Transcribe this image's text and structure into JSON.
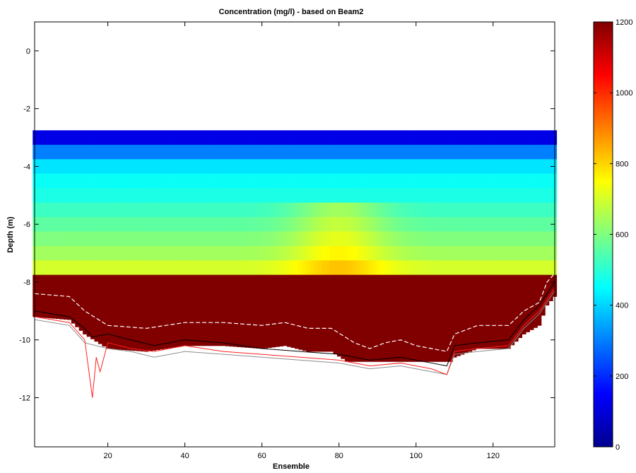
{
  "chart_data": {
    "type": "heatmap",
    "title": "Concentration (mg/l) - based on Beam2",
    "xlabel": "Ensemble",
    "ylabel": "Depth (m)",
    "xlim": [
      1,
      136
    ],
    "ylim": [
      -13.7,
      1
    ],
    "x_ticks": [
      20,
      40,
      60,
      80,
      100,
      120
    ],
    "y_ticks": [
      0,
      -2,
      -4,
      -6,
      -8,
      -10,
      -12
    ],
    "colorbar": {
      "colormap": "jet",
      "clim": [
        0,
        1200
      ],
      "ticks": [
        0,
        200,
        400,
        600,
        800,
        1000,
        1200
      ]
    },
    "grid": false,
    "ensembles": [
      1,
      136
    ],
    "cell_depths": [
      -3.0,
      -3.5,
      -4.0,
      -4.5,
      -5.0,
      -5.5,
      -6.0,
      -6.5,
      -7.0,
      -7.5,
      -8.0,
      -8.5,
      -9.0,
      -9.5,
      -10.0,
      -10.5
    ],
    "concentration_profile": [
      120,
      300,
      420,
      460,
      480,
      520,
      560,
      600,
      640,
      700,
      1200,
      1200,
      1200,
      1200,
      1200,
      1200
    ],
    "bottom_depth_dashed": [
      {
        "x": 1,
        "y": -8.4
      },
      {
        "x": 10,
        "y": -8.5
      },
      {
        "x": 14,
        "y": -9.0
      },
      {
        "x": 20,
        "y": -9.5
      },
      {
        "x": 30,
        "y": -9.6
      },
      {
        "x": 40,
        "y": -9.4
      },
      {
        "x": 50,
        "y": -9.4
      },
      {
        "x": 60,
        "y": -9.5
      },
      {
        "x": 66,
        "y": -9.4
      },
      {
        "x": 72,
        "y": -9.6
      },
      {
        "x": 78,
        "y": -9.6
      },
      {
        "x": 84,
        "y": -10.1
      },
      {
        "x": 88,
        "y": -10.3
      },
      {
        "x": 92,
        "y": -10.1
      },
      {
        "x": 96,
        "y": -10.0
      },
      {
        "x": 100,
        "y": -10.2
      },
      {
        "x": 104,
        "y": -10.3
      },
      {
        "x": 108,
        "y": -10.4
      },
      {
        "x": 110,
        "y": -9.8
      },
      {
        "x": 116,
        "y": -9.5
      },
      {
        "x": 124,
        "y": -9.5
      },
      {
        "x": 128,
        "y": -9.0
      },
      {
        "x": 132,
        "y": -8.7
      },
      {
        "x": 134,
        "y": -8.0
      },
      {
        "x": 136,
        "y": -7.7
      }
    ],
    "bottom_depth_black": [
      {
        "x": 1,
        "y": -9.0
      },
      {
        "x": 10,
        "y": -9.2
      },
      {
        "x": 14,
        "y": -9.6
      },
      {
        "x": 16,
        "y": -9.9
      },
      {
        "x": 20,
        "y": -9.8
      },
      {
        "x": 26,
        "y": -10.0
      },
      {
        "x": 32,
        "y": -10.2
      },
      {
        "x": 40,
        "y": -10.0
      },
      {
        "x": 50,
        "y": -10.1
      },
      {
        "x": 60,
        "y": -10.3
      },
      {
        "x": 70,
        "y": -10.4
      },
      {
        "x": 80,
        "y": -10.5
      },
      {
        "x": 88,
        "y": -10.7
      },
      {
        "x": 96,
        "y": -10.6
      },
      {
        "x": 104,
        "y": -10.8
      },
      {
        "x": 108,
        "y": -10.9
      },
      {
        "x": 110,
        "y": -10.2
      },
      {
        "x": 116,
        "y": -10.1
      },
      {
        "x": 124,
        "y": -10.0
      },
      {
        "x": 128,
        "y": -9.3
      },
      {
        "x": 132,
        "y": -8.8
      },
      {
        "x": 136,
        "y": -8.0
      }
    ],
    "bottom_depth_red": [
      {
        "x": 1,
        "y": -9.2
      },
      {
        "x": 10,
        "y": -9.4
      },
      {
        "x": 14,
        "y": -10.0
      },
      {
        "x": 16,
        "y": -12.0
      },
      {
        "x": 17,
        "y": -10.6
      },
      {
        "x": 18,
        "y": -11.1
      },
      {
        "x": 20,
        "y": -10.1
      },
      {
        "x": 26,
        "y": -10.3
      },
      {
        "x": 32,
        "y": -10.4
      },
      {
        "x": 40,
        "y": -10.2
      },
      {
        "x": 50,
        "y": -10.4
      },
      {
        "x": 60,
        "y": -10.5
      },
      {
        "x": 70,
        "y": -10.6
      },
      {
        "x": 80,
        "y": -10.7
      },
      {
        "x": 88,
        "y": -10.9
      },
      {
        "x": 96,
        "y": -10.8
      },
      {
        "x": 104,
        "y": -11.0
      },
      {
        "x": 108,
        "y": -11.2
      },
      {
        "x": 110,
        "y": -10.4
      },
      {
        "x": 116,
        "y": -10.3
      },
      {
        "x": 124,
        "y": -10.2
      },
      {
        "x": 128,
        "y": -9.5
      },
      {
        "x": 132,
        "y": -9.0
      },
      {
        "x": 136,
        "y": -8.2
      }
    ],
    "bottom_depth_gray": [
      {
        "x": 1,
        "y": -9.3
      },
      {
        "x": 10,
        "y": -9.5
      },
      {
        "x": 14,
        "y": -10.1
      },
      {
        "x": 20,
        "y": -10.3
      },
      {
        "x": 26,
        "y": -10.4
      },
      {
        "x": 32,
        "y": -10.6
      },
      {
        "x": 40,
        "y": -10.4
      },
      {
        "x": 50,
        "y": -10.5
      },
      {
        "x": 60,
        "y": -10.6
      },
      {
        "x": 70,
        "y": -10.7
      },
      {
        "x": 80,
        "y": -10.8
      },
      {
        "x": 88,
        "y": -11.0
      },
      {
        "x": 96,
        "y": -10.9
      },
      {
        "x": 104,
        "y": -11.1
      },
      {
        "x": 108,
        "y": -11.2
      },
      {
        "x": 110,
        "y": -10.5
      },
      {
        "x": 116,
        "y": -10.4
      },
      {
        "x": 124,
        "y": -10.3
      },
      {
        "x": 128,
        "y": -9.6
      },
      {
        "x": 132,
        "y": -9.1
      },
      {
        "x": 136,
        "y": -8.3
      }
    ]
  }
}
